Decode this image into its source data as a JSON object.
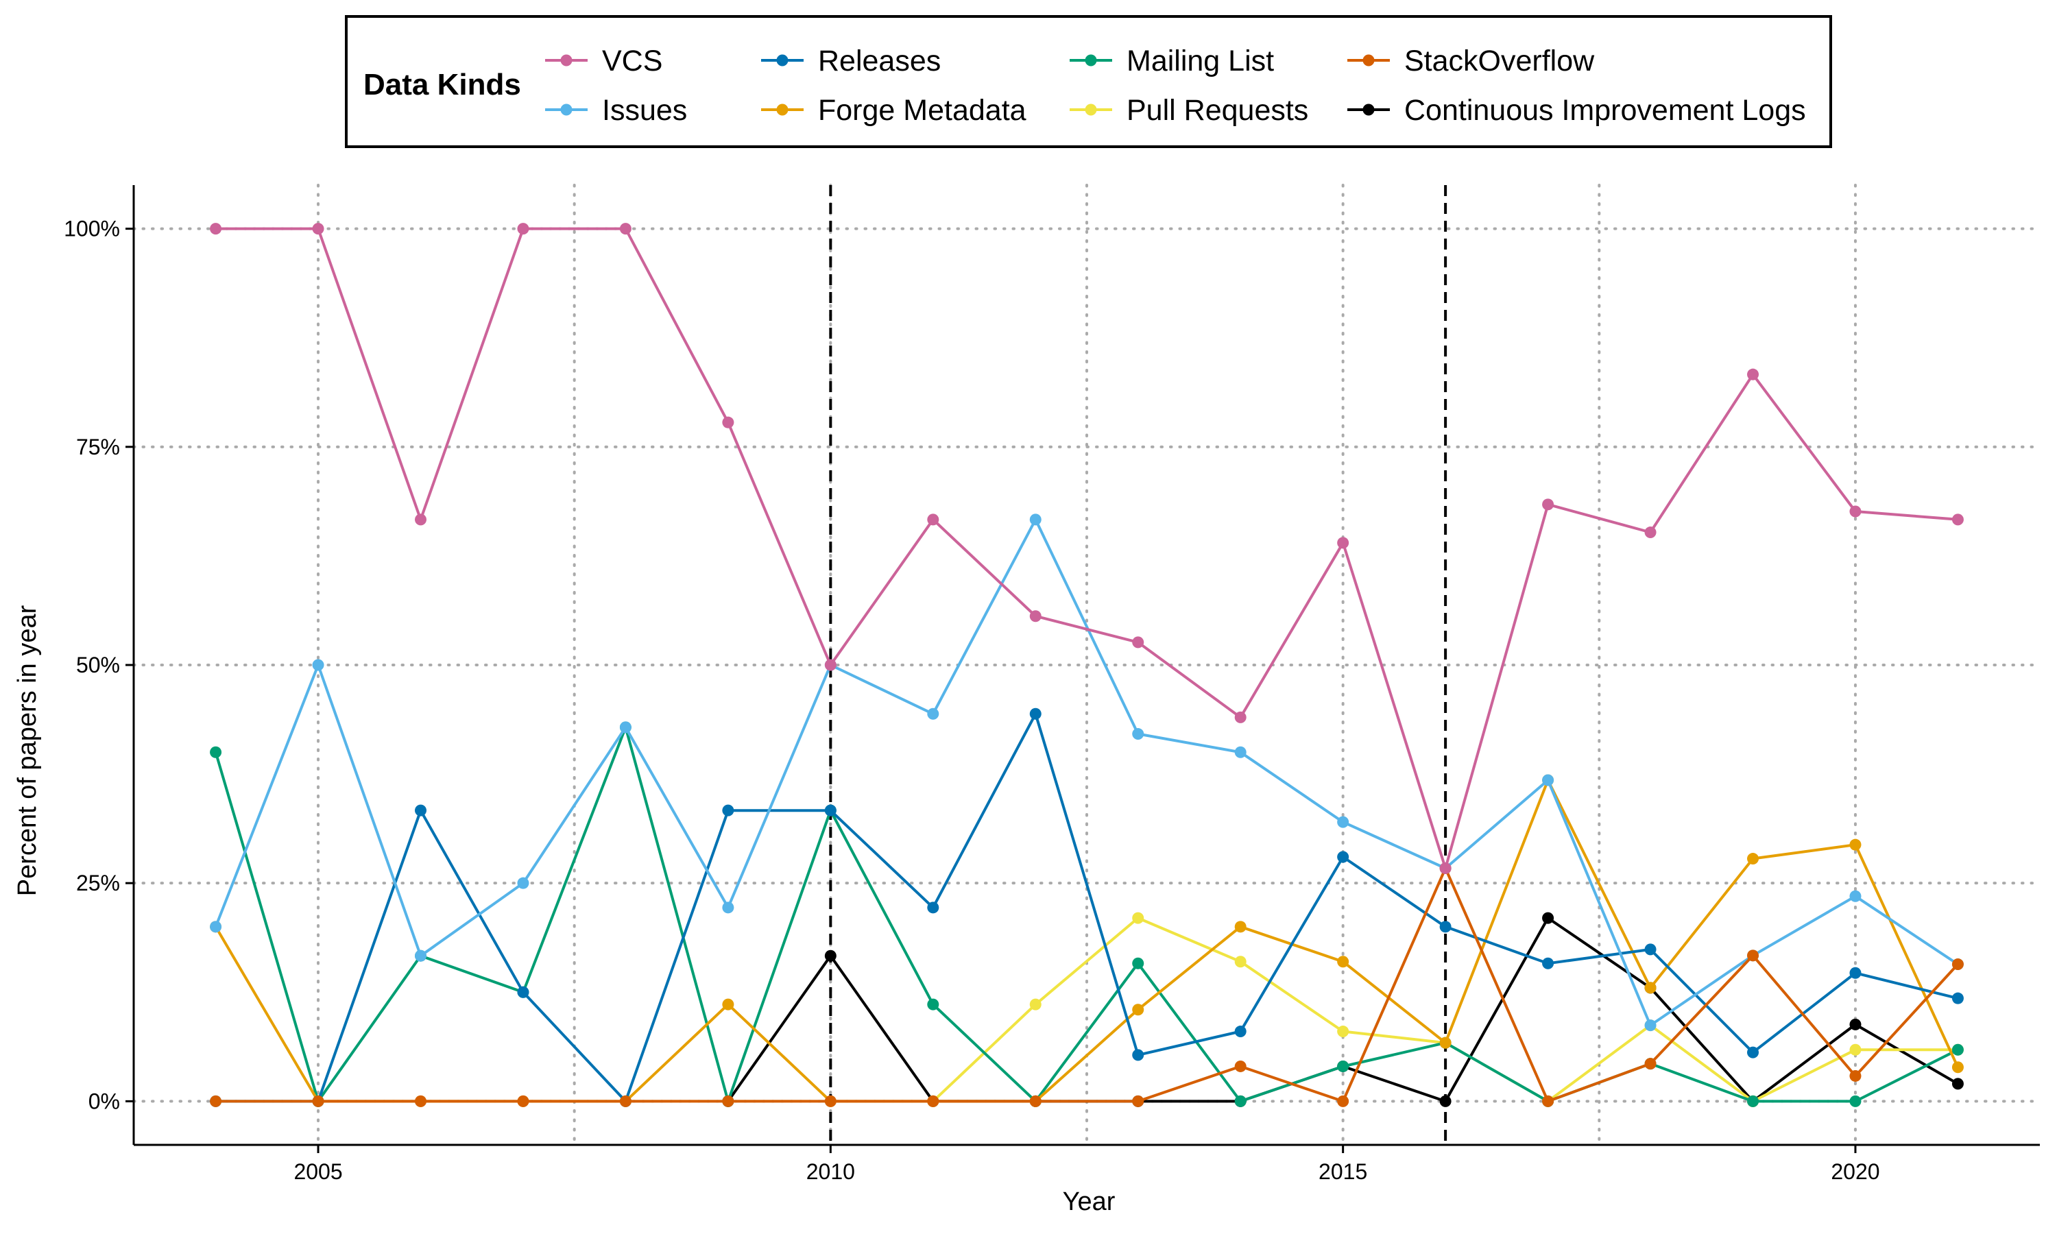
{
  "chart_data": {
    "type": "line",
    "title": "",
    "xlabel": "Year",
    "ylabel": "Percent of papers in year",
    "xlim": [
      2003.2,
      2021.8
    ],
    "ylim": [
      -0.05,
      1.05
    ],
    "x": [
      2004,
      2005,
      2006,
      2007,
      2008,
      2009,
      2010,
      2011,
      2012,
      2013,
      2014,
      2015,
      2016,
      2017,
      2018,
      2019,
      2020,
      2021
    ],
    "x_ticks": [
      2005,
      2010,
      2015,
      2020
    ],
    "x_tick_labels": [
      "2005",
      "2010",
      "2015",
      "2020"
    ],
    "x_minor_gridlines": [
      2007.5,
      2012.5,
      2017.5
    ],
    "y_ticks": [
      0,
      0.25,
      0.5,
      0.75,
      1.0
    ],
    "y_tick_labels": [
      "0%",
      "25%",
      "50%",
      "75%",
      "100%"
    ],
    "grid": "dotted",
    "reference_lines_x": [
      2010,
      2016
    ],
    "legend": {
      "title": "Data Kinds",
      "placement": "top",
      "columns": [
        [
          "VCS",
          "Issues"
        ],
        [
          "Releases",
          "Forge Metadata"
        ],
        [
          "Mailing List",
          "Pull Requests"
        ],
        [
          "StackOverflow",
          "Continuous Improvement Logs"
        ]
      ]
    },
    "series": [
      {
        "name": "Continuous Improvement Logs",
        "color": "#000000",
        "points": [
          [
            2009,
            0
          ],
          [
            2010,
            0.1667
          ],
          [
            2011,
            0
          ],
          [
            2012,
            0
          ],
          [
            2013,
            0
          ],
          [
            2014,
            0
          ],
          [
            2015,
            0.04
          ],
          [
            2016,
            0
          ],
          [
            2017,
            0.21
          ],
          [
            2018,
            0.13
          ],
          [
            2019,
            0
          ],
          [
            2020,
            0.088
          ],
          [
            2021,
            0.02
          ]
        ]
      },
      {
        "name": "Pull Requests",
        "color": "#F0E442",
        "points": [
          [
            2011,
            0
          ],
          [
            2012,
            0.111
          ],
          [
            2013,
            0.21
          ],
          [
            2014,
            0.16
          ],
          [
            2015,
            0.08
          ],
          [
            2016,
            0.067
          ],
          [
            2017,
            0
          ],
          [
            2018,
            0.087
          ],
          [
            2019,
            0
          ],
          [
            2020,
            0.059
          ],
          [
            2021,
            0.059
          ]
        ]
      },
      {
        "name": "Mailing List",
        "color": "#009E73",
        "points": [
          [
            2004,
            0.4
          ],
          [
            2005,
            0
          ],
          [
            2006,
            0.1667
          ],
          [
            2007,
            0.125
          ],
          [
            2008,
            0.4286
          ],
          [
            2009,
            0
          ],
          [
            2010,
            0.3333
          ],
          [
            2011,
            0.111
          ],
          [
            2012,
            0
          ],
          [
            2013,
            0.158
          ],
          [
            2014,
            0
          ],
          [
            2015,
            0.04
          ],
          [
            2016,
            0.067
          ],
          [
            2017,
            0
          ],
          [
            2018,
            0.043
          ],
          [
            2019,
            0
          ],
          [
            2020,
            0
          ],
          [
            2021,
            0.059
          ]
        ]
      },
      {
        "name": "Forge Metadata",
        "color": "#E69F00",
        "points": [
          [
            2004,
            0.2
          ],
          [
            2005,
            0
          ],
          [
            2006,
            0
          ],
          [
            2007,
            0
          ],
          [
            2008,
            0
          ],
          [
            2009,
            0.111
          ],
          [
            2010,
            0
          ],
          [
            2011,
            0
          ],
          [
            2012,
            0
          ],
          [
            2013,
            0.105
          ],
          [
            2014,
            0.2
          ],
          [
            2015,
            0.16
          ],
          [
            2016,
            0.067
          ],
          [
            2017,
            0.368
          ],
          [
            2018,
            0.13
          ],
          [
            2019,
            0.278
          ],
          [
            2020,
            0.294
          ],
          [
            2021,
            0.039
          ]
        ]
      },
      {
        "name": "Releases",
        "color": "#0072B2",
        "points": [
          [
            2004,
            0
          ],
          [
            2005,
            0
          ],
          [
            2006,
            0.3333
          ],
          [
            2007,
            0.125
          ],
          [
            2008,
            0
          ],
          [
            2009,
            0.3333
          ],
          [
            2010,
            0.3333
          ],
          [
            2011,
            0.222
          ],
          [
            2012,
            0.444
          ],
          [
            2013,
            0.053
          ],
          [
            2014,
            0.08
          ],
          [
            2015,
            0.28
          ],
          [
            2016,
            0.2
          ],
          [
            2017,
            0.158
          ],
          [
            2018,
            0.174
          ],
          [
            2019,
            0.056
          ],
          [
            2020,
            0.147
          ],
          [
            2021,
            0.118
          ]
        ]
      },
      {
        "name": "Issues",
        "color": "#56B4E9",
        "points": [
          [
            2004,
            0.2
          ],
          [
            2005,
            0.5
          ],
          [
            2006,
            0.1667
          ],
          [
            2007,
            0.25
          ],
          [
            2008,
            0.4286
          ],
          [
            2009,
            0.222
          ],
          [
            2010,
            0.5
          ],
          [
            2011,
            0.444
          ],
          [
            2012,
            0.6667
          ],
          [
            2013,
            0.421
          ],
          [
            2014,
            0.4
          ],
          [
            2015,
            0.32
          ],
          [
            2016,
            0.267
          ],
          [
            2017,
            0.368
          ],
          [
            2018,
            0.087
          ],
          [
            2019,
            0.167
          ],
          [
            2020,
            0.235
          ],
          [
            2021,
            0.157
          ]
        ]
      },
      {
        "name": "StackOverflow",
        "color": "#D55E00",
        "points": [
          [
            2004,
            0
          ],
          [
            2005,
            0
          ],
          [
            2006,
            0
          ],
          [
            2007,
            0
          ],
          [
            2008,
            0
          ],
          [
            2009,
            0
          ],
          [
            2010,
            0
          ],
          [
            2011,
            0
          ],
          [
            2012,
            0
          ],
          [
            2013,
            0
          ],
          [
            2014,
            0.04
          ],
          [
            2015,
            0
          ],
          [
            2016,
            0.267
          ],
          [
            2017,
            0
          ],
          [
            2018,
            0.043
          ],
          [
            2019,
            0.167
          ],
          [
            2020,
            0.029
          ],
          [
            2021,
            0.157
          ]
        ]
      },
      {
        "name": "VCS",
        "color": "#CC6399",
        "points": [
          [
            2004,
            1.0
          ],
          [
            2005,
            1.0
          ],
          [
            2006,
            0.6667
          ],
          [
            2007,
            1.0
          ],
          [
            2008,
            1.0
          ],
          [
            2009,
            0.778
          ],
          [
            2010,
            0.5
          ],
          [
            2011,
            0.6667
          ],
          [
            2012,
            0.556
          ],
          [
            2013,
            0.526
          ],
          [
            2014,
            0.44
          ],
          [
            2015,
            0.64
          ],
          [
            2016,
            0.267
          ],
          [
            2017,
            0.684
          ],
          [
            2018,
            0.652
          ],
          [
            2019,
            0.833
          ],
          [
            2020,
            0.676
          ],
          [
            2021,
            0.6667
          ]
        ]
      }
    ]
  }
}
